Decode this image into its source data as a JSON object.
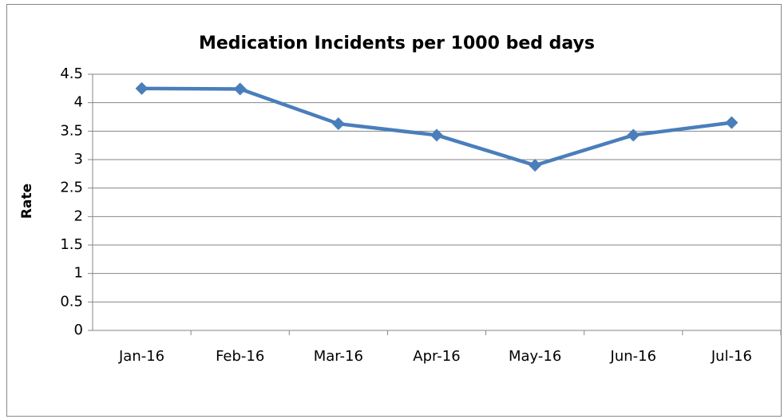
{
  "chart_data": {
    "type": "line",
    "title": "Medication Incidents per 1000 bed days",
    "y_label": "Rate",
    "categories": [
      "Jan-16",
      "Feb-16",
      "Mar-16",
      "Apr-16",
      "May-16",
      "Jun-16",
      "Jul-16"
    ],
    "series": [
      {
        "name": "Rate",
        "color": "#4a7ebb",
        "values": [
          4.25,
          4.24,
          3.63,
          3.43,
          2.9,
          3.43,
          3.65
        ]
      }
    ],
    "ylim": [
      0,
      4.5
    ],
    "yticks": [
      0,
      0.5,
      1,
      1.5,
      2,
      2.5,
      3,
      3.5,
      4,
      4.5
    ],
    "grid": true,
    "legend": false
  }
}
